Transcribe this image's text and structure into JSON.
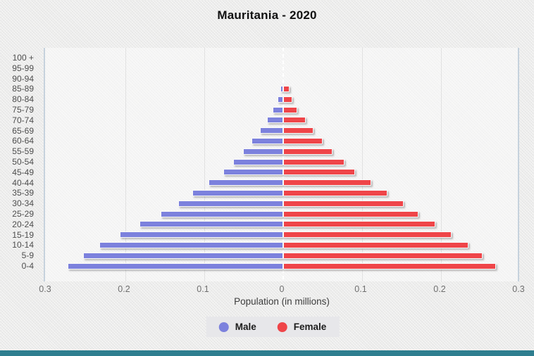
{
  "title": "Mauritania - 2020",
  "axis": {
    "xlabel": "Population (in millions)"
  },
  "legend": {
    "male_label": "Male",
    "female_label": "Female"
  },
  "colors": {
    "male": "#7c81dd",
    "female": "#ef4549",
    "bottom_strip": "#2e7e8f",
    "plot_border": "#c6d2dd"
  },
  "chart_data": {
    "type": "bar",
    "subtype": "population-pyramid",
    "orientation": "horizontal",
    "title": "Mauritania - 2020",
    "xlabel": "Population (in millions)",
    "unit": "millions",
    "grid": true,
    "legend_position": "bottom",
    "x_tick_labels": [
      "0.3",
      "0.2",
      "0.1",
      "0",
      "0.1",
      "0.2",
      "0.3"
    ],
    "xlim_each_side": [
      0,
      0.3
    ],
    "categories": [
      "100 +",
      "95-99",
      "90-94",
      "85-89",
      "80-84",
      "75-79",
      "70-74",
      "65-69",
      "60-64",
      "55-59",
      "50-54",
      "45-49",
      "40-44",
      "35-39",
      "30-34",
      "25-29",
      "20-24",
      "15-19",
      "10-14",
      "5-9",
      "0-4"
    ],
    "series": [
      {
        "name": "Male",
        "side": "left",
        "color": "#7c81dd",
        "values": [
          0,
          0,
          0,
          0.002,
          0.005,
          0.012,
          0.019,
          0.028,
          0.038,
          0.049,
          0.062,
          0.074,
          0.093,
          0.113,
          0.131,
          0.154,
          0.18,
          0.205,
          0.231,
          0.252,
          0.271
        ]
      },
      {
        "name": "Female",
        "side": "right",
        "color": "#ef4549",
        "values": [
          0,
          0,
          0,
          0.006,
          0.01,
          0.016,
          0.027,
          0.037,
          0.048,
          0.061,
          0.076,
          0.089,
          0.11,
          0.13,
          0.151,
          0.17,
          0.191,
          0.212,
          0.233,
          0.251,
          0.268
        ]
      }
    ]
  }
}
